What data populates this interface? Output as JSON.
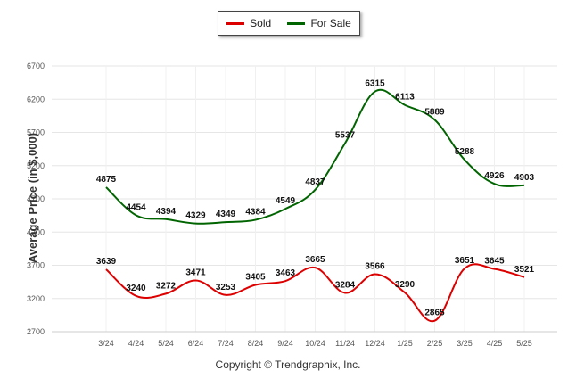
{
  "chart_data": {
    "type": "line",
    "ylabel": "Average Price (in $,000)",
    "ylim": [
      2700,
      6700
    ],
    "yticks": [
      2700,
      3200,
      3700,
      4200,
      4700,
      5200,
      5700,
      6200,
      6700
    ],
    "categories": [
      "3/24",
      "4/24",
      "5/24",
      "6/24",
      "7/24",
      "8/24",
      "9/24",
      "10/24",
      "11/24",
      "12/24",
      "1/25",
      "2/25",
      "3/25",
      "4/25",
      "5/25"
    ],
    "grid": true,
    "legend_position": "top-center",
    "series": [
      {
        "name": "Sold",
        "color": "#dd0000",
        "values": [
          3639,
          3240,
          3272,
          3471,
          3253,
          3405,
          3463,
          3665,
          3284,
          3566,
          3290,
          2865,
          3651,
          3645,
          3521
        ]
      },
      {
        "name": "For Sale",
        "color": "#006400",
        "values": [
          4875,
          4454,
          4394,
          4329,
          4349,
          4384,
          4549,
          4837,
          5537,
          6315,
          6113,
          5889,
          5288,
          4926,
          4903
        ]
      }
    ],
    "footer": "Copyright © Trendgraphix, Inc."
  }
}
